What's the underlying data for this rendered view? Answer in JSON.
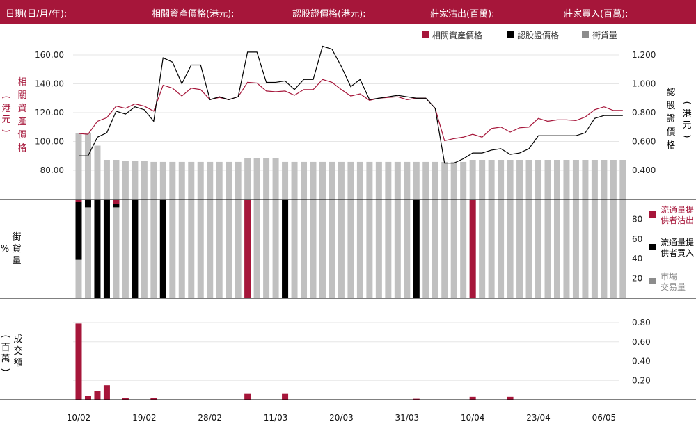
{
  "header": {
    "date_label": "日期(日/月/年):",
    "underlying_label": "相關資產價格(港元):",
    "warrant_label": "認股證價格(港元):",
    "dealer_sell_label": "莊家沽出(百萬):",
    "dealer_buy_label": "莊家買入(百萬):"
  },
  "colors": {
    "brand": "#a6163a",
    "warrant": "#000000",
    "street": "#c0c0c0",
    "street_legend": "#8c8c8c"
  },
  "legend_top": [
    {
      "label": "相關資產價格",
      "color": "#a6163a"
    },
    {
      "label": "認股證價格",
      "color": "#000000"
    },
    {
      "label": "街貨量",
      "color": "#8c8c8c"
    }
  ],
  "legend_mid": [
    {
      "label": "流通量提供者沽出",
      "lines": [
        "流通量提",
        "供者沽出"
      ],
      "color": "#a6163a"
    },
    {
      "label": "流通量提供者買入",
      "lines": [
        "流通量提",
        "供者買入"
      ],
      "color": "#000000"
    },
    {
      "label": "市場交易量",
      "lines": [
        "市場",
        "交易量"
      ],
      "color": "#8c8c8c"
    }
  ],
  "axis_titles": {
    "left_top": "相關資產價格",
    "left_top_unit": "港元",
    "right_top": "認股證價格",
    "right_top_unit": "港元",
    "mid": "街貨量",
    "mid_unit": "%",
    "bottom": "成交額",
    "bottom_unit": "百萬"
  },
  "chart_data": {
    "type": "line",
    "x_labels": [
      "10/02",
      "19/02",
      "28/02",
      "11/03",
      "20/03",
      "31/03",
      "10/04",
      "23/04",
      "06/05"
    ],
    "x_label_index": [
      0,
      7,
      14,
      21,
      28,
      35,
      42,
      49,
      56
    ],
    "n_days": 59,
    "top_panel": {
      "left_axis": {
        "ticks": [
          "80.00",
          "100.00",
          "120.00",
          "140.00",
          "160.00"
        ],
        "ylim": [
          80,
          160
        ]
      },
      "right_axis": {
        "ticks": [
          "0.400",
          "0.600",
          "0.800",
          "1.000",
          "1.200"
        ],
        "ylim": [
          0.4,
          1.2
        ]
      },
      "series": [
        {
          "name": "相關資產價格",
          "axis": "left",
          "values": [
            105.5,
            105,
            114,
            116.5,
            124.5,
            123,
            126,
            124.5,
            121,
            139,
            137,
            131.5,
            137,
            136,
            129,
            130.5,
            129,
            131,
            141,
            140.5,
            135,
            134.5,
            135,
            132,
            136,
            136,
            143,
            141,
            136,
            131.5,
            133,
            128.5,
            130,
            130.5,
            131,
            129,
            130,
            130,
            123,
            100.5,
            102,
            103,
            105,
            103,
            109,
            110,
            106.5,
            109.5,
            110,
            116,
            114,
            115,
            115,
            114.5,
            117,
            122,
            124,
            121.5,
            121.5
          ]
        },
        {
          "name": "認股證價格",
          "axis": "right",
          "values": [
            0.5,
            0.5,
            0.63,
            0.66,
            0.81,
            0.79,
            0.84,
            0.82,
            0.74,
            1.18,
            1.15,
            1.0,
            1.13,
            1.13,
            0.89,
            0.91,
            0.89,
            0.91,
            1.22,
            1.22,
            1.01,
            1.01,
            1.02,
            0.96,
            1.03,
            1.03,
            1.26,
            1.24,
            1.12,
            0.98,
            1.03,
            0.89,
            0.9,
            0.91,
            0.92,
            0.91,
            0.9,
            0.9,
            0.83,
            0.45,
            0.45,
            0.48,
            0.52,
            0.52,
            0.54,
            0.55,
            0.51,
            0.52,
            0.55,
            0.64,
            0.64,
            0.64,
            0.64,
            0.64,
            0.66,
            0.76,
            0.78,
            0.78,
            0.78
          ]
        }
      ],
      "street_volume": {
        "name": "街貨量",
        "values": [
          65,
          65,
          53,
          39,
          39,
          38,
          38,
          38,
          37,
          37,
          37,
          37,
          37,
          37,
          37,
          37,
          37,
          37,
          41,
          41,
          41,
          41,
          37,
          37,
          37,
          37,
          37,
          37,
          37,
          37,
          37,
          37,
          37,
          37,
          37,
          37,
          37,
          37,
          37,
          37,
          37,
          37,
          39,
          39,
          39,
          39,
          39,
          39,
          39,
          39,
          39,
          39,
          39,
          39,
          39,
          39,
          39,
          39,
          39
        ]
      }
    },
    "mid_panel": {
      "ticks": [
        "20",
        "40",
        "60",
        "80"
      ],
      "ylim": [
        0,
        100
      ],
      "market_volume": [
        100,
        100,
        100,
        100,
        100,
        100,
        100,
        100,
        100,
        100,
        100,
        100,
        100,
        100,
        100,
        100,
        100,
        100,
        100,
        100,
        100,
        100,
        100,
        100,
        100,
        100,
        100,
        100,
        100,
        100,
        100,
        100,
        100,
        100,
        100,
        100,
        100,
        100,
        100,
        100,
        100,
        100,
        100,
        100,
        100,
        100,
        100,
        100,
        100,
        100,
        100,
        100,
        100,
        100,
        100,
        100,
        100,
        100,
        100
      ],
      "lp_buy": [
        37,
        0,
        0,
        0,
        0,
        0,
        0,
        0,
        0,
        0,
        0,
        0,
        0,
        0,
        0,
        0,
        0,
        0,
        0,
        0,
        0,
        0,
        0,
        0,
        0,
        0,
        0,
        0,
        0,
        0,
        0,
        0,
        0,
        0,
        0,
        0,
        0,
        0,
        0,
        0,
        0,
        0,
        0,
        0,
        0,
        0,
        0,
        0,
        0,
        0,
        0,
        0,
        0,
        0,
        0,
        0,
        0,
        0,
        0
      ],
      "lp_sell": [
        0,
        91,
        0,
        0,
        92,
        0,
        0,
        0,
        0,
        0,
        0,
        0,
        0,
        0,
        0,
        0,
        0,
        0,
        0,
        0,
        0,
        0,
        0,
        0,
        0,
        0,
        0,
        0,
        0,
        0,
        0,
        0,
        0,
        0,
        0,
        0,
        0,
        0,
        0,
        0,
        0,
        0,
        0,
        0,
        0,
        0,
        0,
        0,
        0,
        0,
        0,
        0,
        0,
        0,
        0,
        0,
        0,
        0,
        0
      ],
      "lp_buy_full": [
        0,
        0,
        100,
        100,
        0,
        0,
        100,
        0,
        0,
        100,
        0,
        0,
        0,
        0,
        0,
        0,
        0,
        0,
        0,
        0,
        0,
        0,
        100,
        0,
        0,
        0,
        0,
        0,
        0,
        0,
        0,
        0,
        0,
        0,
        0,
        0,
        100,
        0,
        0,
        0,
        0,
        0,
        0,
        0,
        0,
        0,
        0,
        0,
        0,
        0,
        0,
        0,
        0,
        0,
        0,
        0,
        0,
        0,
        0
      ],
      "lp_sell_full": [
        0,
        0,
        0,
        0,
        0,
        0,
        0,
        0,
        0,
        0,
        0,
        0,
        0,
        0,
        0,
        0,
        0,
        0,
        100,
        0,
        0,
        0,
        0,
        0,
        0,
        0,
        0,
        0,
        0,
        0,
        0,
        0,
        0,
        0,
        0,
        0,
        0,
        0,
        0,
        0,
        0,
        0,
        100,
        0,
        0,
        0,
        0,
        0,
        0,
        0,
        0,
        0,
        0,
        0,
        0,
        0,
        0,
        0,
        0
      ],
      "lp_sell_cap": [
        3.5,
        0,
        0,
        0,
        7,
        0,
        0,
        0,
        0,
        0,
        0,
        0,
        0,
        0,
        0,
        0,
        0,
        0,
        0,
        0,
        0,
        0,
        0,
        0,
        0,
        0,
        0,
        0,
        0,
        0,
        0,
        0,
        0,
        0,
        0,
        0,
        0,
        0,
        0,
        0,
        0,
        0,
        0,
        0,
        0,
        0,
        0,
        0,
        0,
        0,
        0,
        0,
        0,
        0,
        0,
        0,
        0,
        0,
        0
      ]
    },
    "bottom_panel": {
      "ticks": [
        "0.20",
        "0.40",
        "0.60",
        "0.80"
      ],
      "ylim": [
        0,
        0.8
      ],
      "turnover": [
        0.79,
        0.04,
        0.09,
        0.15,
        0,
        0.02,
        0,
        0,
        0.02,
        0,
        0,
        0,
        0,
        0,
        0,
        0,
        0,
        0,
        0.06,
        0,
        0,
        0,
        0.06,
        0,
        0,
        0,
        0,
        0,
        0,
        0,
        0,
        0,
        0,
        0,
        0,
        0,
        0.01,
        0,
        0,
        0,
        0,
        0,
        0.03,
        0,
        0,
        0,
        0.03,
        0,
        0,
        0,
        0,
        0,
        0,
        0,
        0,
        0,
        0,
        0,
        0
      ]
    }
  }
}
